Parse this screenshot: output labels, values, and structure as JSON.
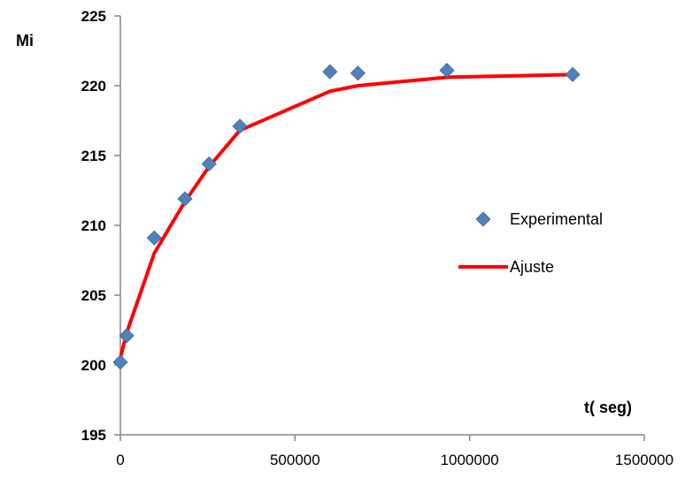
{
  "chart_data": {
    "type": "scatter",
    "ylabel": "Mi",
    "xlabel": "t( seg)",
    "xlim": [
      0,
      1500000
    ],
    "ylim": [
      195,
      225
    ],
    "x_ticks": [
      0,
      500000,
      1000000,
      1500000
    ],
    "x_tick_labels": [
      "0",
      "500000",
      "1000000",
      "1500000"
    ],
    "y_ticks": [
      195,
      200,
      205,
      210,
      215,
      220,
      225
    ],
    "y_tick_labels": [
      "195",
      "200",
      "205",
      "210",
      "215",
      "220",
      "225"
    ],
    "grid": false,
    "legend_position": "right",
    "series": [
      {
        "name": "Experimental",
        "kind": "markers",
        "marker": "diamond",
        "color": "#4F81BD",
        "x": [
          0,
          18000,
          97000,
          185000,
          254000,
          342000,
          600000,
          680000,
          935000,
          1295000
        ],
        "y": [
          200.2,
          202.1,
          209.1,
          211.9,
          214.4,
          217.1,
          221.0,
          220.9,
          221.1,
          220.8
        ]
      },
      {
        "name": "Ajuste",
        "kind": "line",
        "color": "#FF0000",
        "x": [
          0,
          18000,
          97000,
          185000,
          254000,
          342000,
          600000,
          680000,
          935000,
          1295000
        ],
        "y": [
          200.5,
          202.3,
          208.0,
          211.7,
          214.2,
          216.8,
          219.6,
          220.0,
          220.6,
          220.8
        ]
      }
    ]
  }
}
